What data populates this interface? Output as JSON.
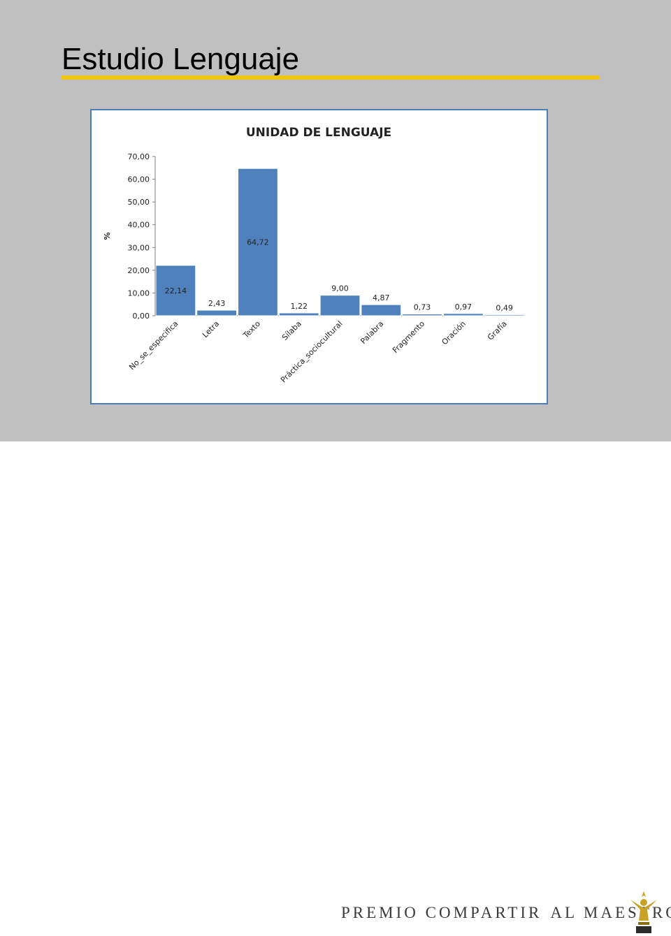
{
  "slide": {
    "title": "Estudio Lenguaje"
  },
  "footer": {
    "brand_part1": "PREMIO COMPARTIR",
    "brand_part2": "AL MAESTRO"
  },
  "colors": {
    "slide_bg": "#c0c0c0",
    "title_underline": "#f2c510",
    "chart_border": "#4a7ebb",
    "bar_fill": "#4f81bd",
    "trophy_gold": "#c9a227"
  },
  "chart_data": {
    "type": "bar",
    "title": "UNIDAD DE LENGUAJE",
    "xlabel": "",
    "ylabel": "%",
    "ylim": [
      0,
      70
    ],
    "yticks": [
      "0,00",
      "10,00",
      "20,00",
      "30,00",
      "40,00",
      "50,00",
      "60,00",
      "70,00"
    ],
    "categories": [
      "No_se_especifica",
      "Letra",
      "Texto",
      "Sílaba",
      "Práctica_sociocultural",
      "Palabra",
      "Fragmento",
      "Oración",
      "Grafía"
    ],
    "values": [
      22.14,
      2.43,
      64.72,
      1.22,
      9.0,
      4.87,
      0.73,
      0.97,
      0.49
    ],
    "value_labels": [
      "22,14",
      "2,43",
      "64,72",
      "1,22",
      "9,00",
      "4,87",
      "0,73",
      "0,97",
      "0,49"
    ],
    "grid": false,
    "legend": "none"
  }
}
